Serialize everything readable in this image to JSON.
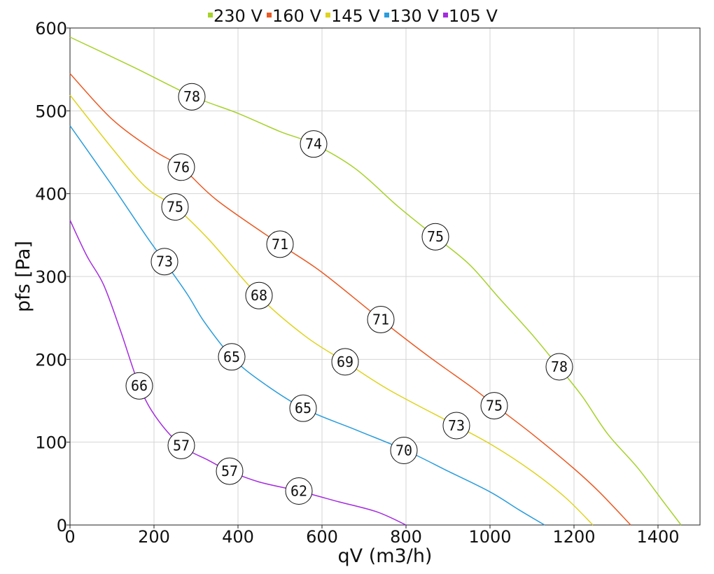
{
  "chart_data": {
    "type": "line",
    "title": "",
    "xlabel": "qV (m3/h)",
    "ylabel": "pfs [Pa]",
    "xlim": [
      0,
      1500
    ],
    "ylim": [
      0,
      600
    ],
    "xticks": [
      0,
      200,
      400,
      600,
      800,
      1000,
      1200,
      1400
    ],
    "yticks": [
      0,
      100,
      200,
      300,
      400,
      500,
      600
    ],
    "grid": true,
    "legend_position": "top-center",
    "series": [
      {
        "name": "230 V",
        "color": "#a6d22a",
        "points": [
          [
            0,
            589
          ],
          [
            150,
            553
          ],
          [
            290,
            518
          ],
          [
            400,
            497
          ],
          [
            500,
            475
          ],
          [
            580,
            460
          ],
          [
            680,
            430
          ],
          [
            780,
            385
          ],
          [
            870,
            348
          ],
          [
            950,
            315
          ],
          [
            1020,
            275
          ],
          [
            1100,
            230
          ],
          [
            1165,
            190
          ],
          [
            1220,
            155
          ],
          [
            1280,
            110
          ],
          [
            1350,
            70
          ],
          [
            1410,
            30
          ],
          [
            1455,
            0
          ]
        ],
        "markers": [
          {
            "x": 290,
            "y": 517,
            "label": "78"
          },
          {
            "x": 580,
            "y": 460,
            "label": "74"
          },
          {
            "x": 870,
            "y": 348,
            "label": "75"
          },
          {
            "x": 1165,
            "y": 191,
            "label": "78"
          }
        ]
      },
      {
        "name": "160 V",
        "color": "#ea5a24",
        "points": [
          [
            0,
            545
          ],
          [
            100,
            490
          ],
          [
            200,
            452
          ],
          [
            265,
            432
          ],
          [
            350,
            392
          ],
          [
            500,
            339
          ],
          [
            600,
            305
          ],
          [
            740,
            248
          ],
          [
            850,
            205
          ],
          [
            960,
            165
          ],
          [
            1010,
            145
          ],
          [
            1100,
            110
          ],
          [
            1200,
            68
          ],
          [
            1260,
            40
          ],
          [
            1335,
            0
          ]
        ],
        "markers": [
          {
            "x": 265,
            "y": 432,
            "label": "76"
          },
          {
            "x": 500,
            "y": 339,
            "label": "71"
          },
          {
            "x": 740,
            "y": 248,
            "label": "71"
          },
          {
            "x": 1010,
            "y": 144,
            "label": "75"
          }
        ]
      },
      {
        "name": "145 V",
        "color": "#dfd31f",
        "points": [
          [
            0,
            519
          ],
          [
            100,
            455
          ],
          [
            180,
            408
          ],
          [
            250,
            384
          ],
          [
            330,
            345
          ],
          [
            450,
            276
          ],
          [
            560,
            228
          ],
          [
            655,
            197
          ],
          [
            760,
            163
          ],
          [
            920,
            120
          ],
          [
            1010,
            95
          ],
          [
            1100,
            65
          ],
          [
            1180,
            33
          ],
          [
            1245,
            0
          ]
        ],
        "markers": [
          {
            "x": 250,
            "y": 384,
            "label": "75"
          },
          {
            "x": 450,
            "y": 277,
            "label": "68"
          },
          {
            "x": 655,
            "y": 197,
            "label": "69"
          },
          {
            "x": 920,
            "y": 120,
            "label": "73"
          }
        ]
      },
      {
        "name": "130 V",
        "color": "#2a9ddc",
        "points": [
          [
            0,
            482
          ],
          [
            100,
            410
          ],
          [
            180,
            350
          ],
          [
            225,
            318
          ],
          [
            280,
            278
          ],
          [
            320,
            245
          ],
          [
            385,
            203
          ],
          [
            450,
            175
          ],
          [
            555,
            141
          ],
          [
            680,
            115
          ],
          [
            800,
            90
          ],
          [
            900,
            65
          ],
          [
            1000,
            40
          ],
          [
            1070,
            18
          ],
          [
            1130,
            0
          ]
        ],
        "markers": [
          {
            "x": 225,
            "y": 318,
            "label": "73"
          },
          {
            "x": 385,
            "y": 203,
            "label": "65"
          },
          {
            "x": 555,
            "y": 141,
            "label": "65"
          },
          {
            "x": 795,
            "y": 90,
            "label": "70"
          }
        ]
      },
      {
        "name": "105 V",
        "color": "#a42cdf",
        "points": [
          [
            0,
            368
          ],
          [
            40,
            325
          ],
          [
            80,
            290
          ],
          [
            120,
            235
          ],
          [
            165,
            168
          ],
          [
            205,
            130
          ],
          [
            265,
            96
          ],
          [
            330,
            78
          ],
          [
            380,
            65
          ],
          [
            450,
            52
          ],
          [
            545,
            41
          ],
          [
            640,
            28
          ],
          [
            730,
            16
          ],
          [
            800,
            0
          ]
        ],
        "markers": [
          {
            "x": 165,
            "y": 168,
            "label": "66"
          },
          {
            "x": 265,
            "y": 96,
            "label": "57"
          },
          {
            "x": 380,
            "y": 65,
            "label": "57"
          },
          {
            "x": 545,
            "y": 41,
            "label": "62"
          }
        ]
      }
    ]
  }
}
